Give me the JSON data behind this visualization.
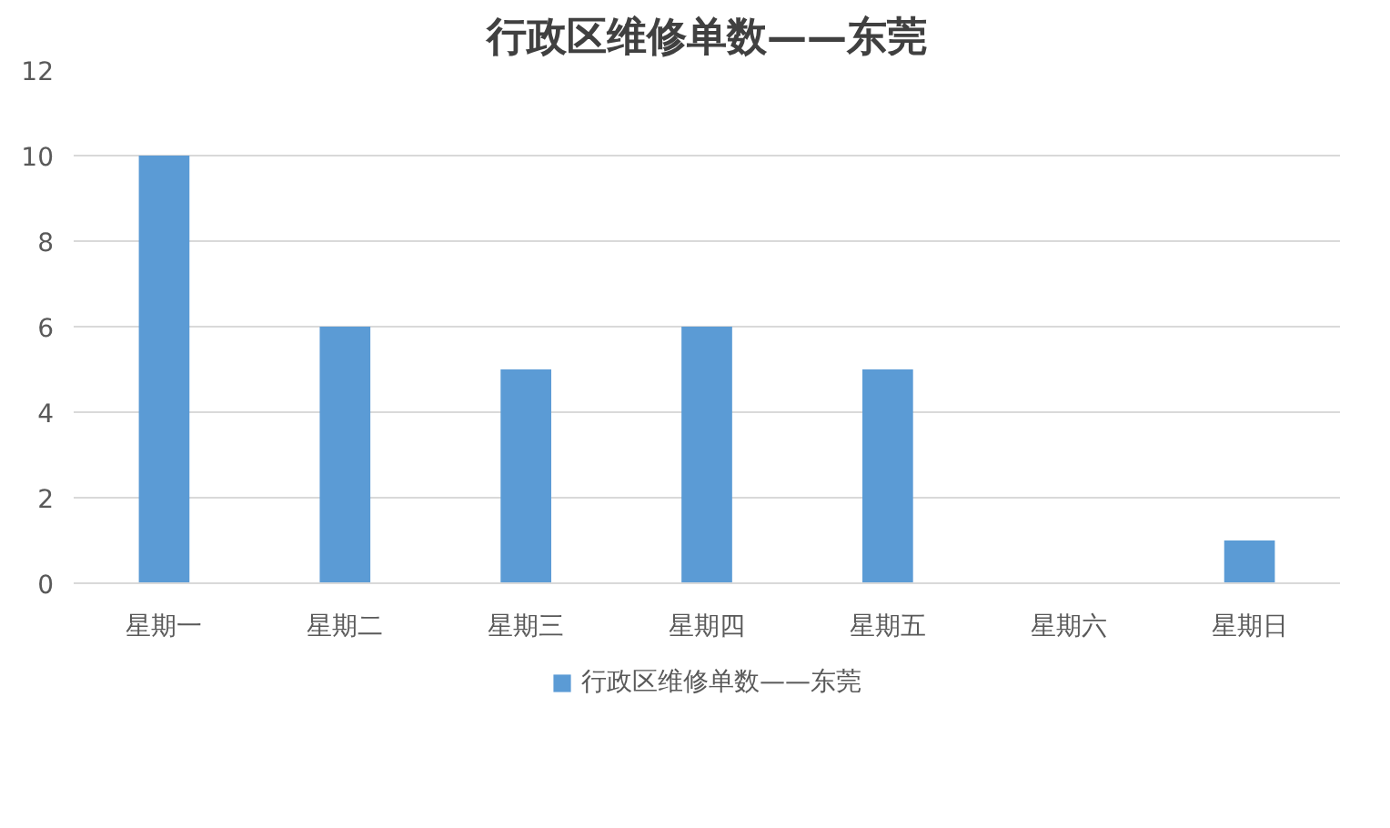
{
  "chart_data": {
    "type": "bar",
    "title": "行政区维修单数——东莞",
    "categories": [
      "星期一",
      "星期二",
      "星期三",
      "星期四",
      "星期五",
      "星期六",
      "星期日"
    ],
    "series": [
      {
        "name": "行政区维修单数——东莞",
        "color": "#5b9bd5",
        "values": [
          10,
          6,
          5,
          6,
          5,
          0,
          1
        ]
      }
    ],
    "ylim": [
      0,
      12
    ],
    "yticks": [
      0,
      2,
      4,
      6,
      8,
      10,
      12
    ],
    "grid": "y",
    "legend": "bottom"
  }
}
